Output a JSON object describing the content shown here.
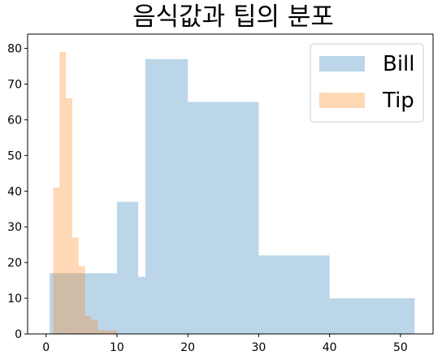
{
  "chart_data": {
    "type": "histogram",
    "title": "음식값과 팁의 분포",
    "xlabel": "",
    "ylabel": "",
    "xlim": [
      -2.6,
      54.6
    ],
    "ylim": [
      0,
      84
    ],
    "x_ticks": [
      0,
      10,
      20,
      30,
      40,
      50
    ],
    "y_ticks": [
      0,
      10,
      20,
      30,
      40,
      50,
      60,
      70,
      80
    ],
    "grid": false,
    "legend_position": "top-right",
    "series": [
      {
        "name": "Bill",
        "color": "#1f77b4",
        "alpha": 0.3,
        "bins": [
          {
            "start": 0.5,
            "end": 10,
            "count": 17
          },
          {
            "start": 10,
            "end": 13,
            "count": 37
          },
          {
            "start": 13,
            "end": 14,
            "count": 16
          },
          {
            "start": 14,
            "end": 20,
            "count": 77
          },
          {
            "start": 20,
            "end": 30,
            "count": 65
          },
          {
            "start": 30,
            "end": 40,
            "count": 22
          },
          {
            "start": 40,
            "end": 52,
            "count": 10
          }
        ]
      },
      {
        "name": "Tip",
        "color": "#ff7f0e",
        "alpha": 0.3,
        "bins": [
          {
            "start": 1.0,
            "end": 1.9,
            "count": 41
          },
          {
            "start": 1.9,
            "end": 2.8,
            "count": 79
          },
          {
            "start": 2.8,
            "end": 3.7,
            "count": 66
          },
          {
            "start": 3.7,
            "end": 4.6,
            "count": 27
          },
          {
            "start": 4.6,
            "end": 5.5,
            "count": 19
          },
          {
            "start": 5.5,
            "end": 6.4,
            "count": 5
          },
          {
            "start": 6.4,
            "end": 7.3,
            "count": 4
          },
          {
            "start": 7.3,
            "end": 8.2,
            "count": 1
          },
          {
            "start": 8.2,
            "end": 9.1,
            "count": 1
          },
          {
            "start": 9.1,
            "end": 10.0,
            "count": 1
          }
        ]
      }
    ]
  }
}
